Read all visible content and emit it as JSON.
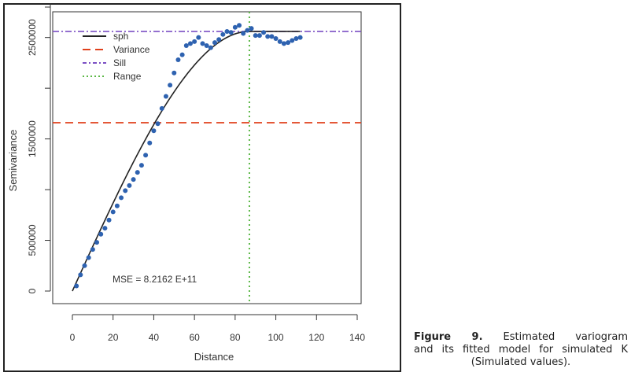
{
  "caption": {
    "label": "Figure 9.",
    "line1": "Estimated variogram",
    "line2": "and its fitted model for simulated K",
    "line3": "(Simulated values)."
  },
  "chart_data": {
    "type": "scatter",
    "xlabel": "Distance",
    "ylabel": "Semivariance",
    "xlim": [
      0,
      140
    ],
    "ylim": [
      0,
      2800000
    ],
    "x_ticks": [
      0,
      20,
      40,
      60,
      80,
      100,
      120,
      140
    ],
    "y_ticks": [
      0,
      500000,
      1000000,
      1500000,
      2000000,
      2500000
    ],
    "y_tick_labels": [
      "0",
      "500000",
      "",
      "1500000",
      "",
      "2500000"
    ],
    "legend": [
      {
        "name": "sph",
        "style": "solid",
        "color": "#222222"
      },
      {
        "name": "Variance",
        "style": "dashed",
        "color": "#e0401c"
      },
      {
        "name": "Sill",
        "style": "dashdot",
        "color": "#7b4fc4"
      },
      {
        "name": "Range",
        "style": "dotted",
        "color": "#5cb847"
      }
    ],
    "legend_position": "top-left",
    "annotation": "MSE =  8.2162 E+11",
    "sill": 2560000,
    "variance": 1660000,
    "range": 87,
    "points": {
      "color": "#2e62b0",
      "x": [
        2,
        4,
        6,
        8,
        10,
        12,
        14,
        16,
        18,
        20,
        22,
        24,
        26,
        28,
        30,
        32,
        34,
        36,
        38,
        40,
        42,
        44,
        46,
        48,
        50,
        52,
        54,
        56,
        58,
        60,
        62,
        64,
        66,
        68,
        70,
        72,
        74,
        76,
        78,
        80,
        82,
        84,
        86,
        88,
        90,
        92,
        94,
        96,
        98,
        100,
        102,
        104,
        106,
        108,
        110,
        112
      ],
      "y": [
        50000,
        160000,
        250000,
        330000,
        410000,
        480000,
        560000,
        620000,
        700000,
        780000,
        840000,
        920000,
        990000,
        1040000,
        1100000,
        1170000,
        1240000,
        1340000,
        1460000,
        1580000,
        1650000,
        1800000,
        1920000,
        2030000,
        2150000,
        2280000,
        2330000,
        2420000,
        2440000,
        2460000,
        2500000,
        2440000,
        2420000,
        2400000,
        2450000,
        2480000,
        2530000,
        2560000,
        2550000,
        2600000,
        2620000,
        2540000,
        2570000,
        2590000,
        2520000,
        2520000,
        2550000,
        2510000,
        2510000,
        2490000,
        2460000,
        2440000,
        2450000,
        2470000,
        2490000,
        2500000
      ]
    }
  }
}
